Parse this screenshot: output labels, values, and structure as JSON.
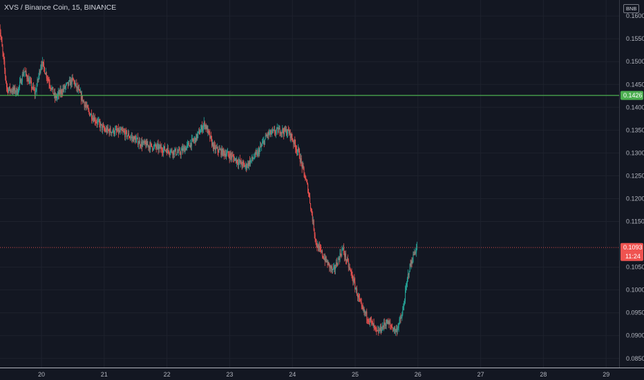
{
  "header": {
    "symbol_title": "XVS / Binance Coin, 15, BINANCE",
    "currency": "BNB"
  },
  "colors": {
    "background": "#131722",
    "grid": "#1e222d",
    "up": "#26a69a",
    "down": "#ef5350",
    "level_line": "#4caf50",
    "axis_text": "#b2b5be"
  },
  "chart_data": {
    "type": "candlestick",
    "title": "XVS / Binance Coin, 15, BINANCE",
    "interval": "15",
    "y_axis": {
      "ticks": [
        "0.1600",
        "0.1550",
        "0.1500",
        "0.1450",
        "0.1400",
        "0.1350",
        "0.1300",
        "0.1250",
        "0.1200",
        "0.1150",
        "0.1050",
        "0.1000",
        "0.0950",
        "0.0900",
        "0.0850"
      ],
      "range": [
        0.083,
        0.1635
      ],
      "position": "right"
    },
    "x_axis": {
      "ticks": [
        "20",
        "21",
        "22",
        "23",
        "24",
        "25",
        "26",
        "27",
        "28",
        "29"
      ]
    },
    "grid": true,
    "price_path": [
      {
        "day": 19.32,
        "price": 0.159
      },
      {
        "day": 19.45,
        "price": 0.144
      },
      {
        "day": 19.62,
        "price": 0.1435
      },
      {
        "day": 19.72,
        "price": 0.148
      },
      {
        "day": 19.9,
        "price": 0.143
      },
      {
        "day": 20.0,
        "price": 0.15
      },
      {
        "day": 20.22,
        "price": 0.142
      },
      {
        "day": 20.35,
        "price": 0.144
      },
      {
        "day": 20.5,
        "price": 0.146
      },
      {
        "day": 20.75,
        "price": 0.139
      },
      {
        "day": 21.0,
        "price": 0.135
      },
      {
        "day": 21.3,
        "price": 0.1345
      },
      {
        "day": 21.6,
        "price": 0.132
      },
      {
        "day": 21.9,
        "price": 0.131
      },
      {
        "day": 22.2,
        "price": 0.13
      },
      {
        "day": 22.45,
        "price": 0.133
      },
      {
        "day": 22.6,
        "price": 0.1365
      },
      {
        "day": 22.75,
        "price": 0.131
      },
      {
        "day": 23.0,
        "price": 0.1295
      },
      {
        "day": 23.25,
        "price": 0.127
      },
      {
        "day": 23.45,
        "price": 0.13
      },
      {
        "day": 23.6,
        "price": 0.134
      },
      {
        "day": 23.8,
        "price": 0.135
      },
      {
        "day": 23.95,
        "price": 0.1345
      },
      {
        "day": 24.1,
        "price": 0.13
      },
      {
        "day": 24.25,
        "price": 0.122
      },
      {
        "day": 24.38,
        "price": 0.11
      },
      {
        "day": 24.55,
        "price": 0.106
      },
      {
        "day": 24.65,
        "price": 0.104
      },
      {
        "day": 24.8,
        "price": 0.109
      },
      {
        "day": 24.95,
        "price": 0.103
      },
      {
        "day": 25.1,
        "price": 0.096
      },
      {
        "day": 25.25,
        "price": 0.093
      },
      {
        "day": 25.35,
        "price": 0.0905
      },
      {
        "day": 25.5,
        "price": 0.093
      },
      {
        "day": 25.65,
        "price": 0.091
      },
      {
        "day": 25.75,
        "price": 0.0945
      },
      {
        "day": 25.85,
        "price": 0.104
      },
      {
        "day": 25.95,
        "price": 0.1085
      },
      {
        "day": 25.99,
        "price": 0.1093
      }
    ],
    "horizontal_line": {
      "price": 0.1426,
      "label": "0.1426",
      "color": "#4caf50"
    },
    "last_price": {
      "price": 0.1093,
      "label": "0.1093",
      "countdown": "11:24",
      "color": "#ef5350"
    }
  }
}
